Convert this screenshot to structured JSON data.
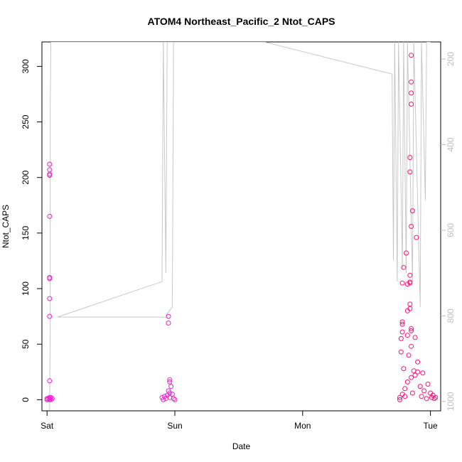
{
  "chart_data": {
    "type": "scatter",
    "title": "ATOM4 Northeast_Pacific_2 Ntot_CAPS",
    "xlabel": "Date",
    "ylabel": "Ntot_CAPS",
    "x_ticks": [
      "Sat",
      "Sun",
      "Mon",
      "Tue"
    ],
    "y_ticks": [
      0,
      50,
      100,
      150,
      200,
      250,
      300
    ],
    "y2_ticks": [
      200,
      400,
      600,
      800,
      1000
    ],
    "xlim_days": [
      -0.04,
      3.08
    ],
    "ylim": [
      -10,
      322
    ],
    "y2lim_reversed": [
      1022,
      160
    ],
    "grid": false,
    "legend": "none",
    "colors": {
      "points_early": "#ee22cc",
      "points_late": "#ff1177",
      "secondary_line": "#c8c8c8",
      "right_axis": "#bdbdbd"
    },
    "series": [
      {
        "role": "points",
        "points": [
          [
            0.02,
            0
          ],
          [
            0.02,
            1
          ],
          [
            0.02,
            2
          ],
          [
            0.02,
            17
          ],
          [
            0.02,
            75
          ],
          [
            0.02,
            91
          ],
          [
            0.02,
            109
          ],
          [
            0.02,
            110
          ],
          [
            0.02,
            165
          ],
          [
            0.02,
            202
          ],
          [
            0.02,
            203
          ],
          [
            0.02,
            207
          ],
          [
            0.02,
            212
          ],
          [
            0.0,
            0
          ],
          [
            0.01,
            1
          ],
          [
            0.03,
            0
          ],
          [
            0.04,
            1
          ],
          [
            0.03,
            2
          ],
          [
            0.0,
            1
          ],
          [
            0.9,
            2
          ],
          [
            0.92,
            3
          ],
          [
            0.94,
            4
          ],
          [
            0.96,
            2
          ],
          [
            0.98,
            5
          ],
          [
            0.96,
            6
          ],
          [
            0.95,
            8
          ],
          [
            0.97,
            12
          ],
          [
            0.96,
            16
          ],
          [
            0.96,
            18
          ],
          [
            0.95,
            69
          ],
          [
            0.95,
            75
          ],
          [
            1.0,
            0
          ],
          [
            0.99,
            1
          ],
          [
            0.93,
            1
          ],
          [
            0.91,
            0
          ],
          [
            2.76,
            0
          ],
          [
            2.78,
            5
          ],
          [
            2.8,
            10
          ],
          [
            2.82,
            16
          ],
          [
            2.85,
            20
          ],
          [
            2.88,
            22
          ],
          [
            2.9,
            25
          ],
          [
            2.92,
            12
          ],
          [
            2.95,
            8
          ],
          [
            2.98,
            14
          ],
          [
            3.0,
            6
          ],
          [
            3.02,
            4
          ],
          [
            3.04,
            2
          ],
          [
            2.77,
            43
          ],
          [
            2.77,
            55
          ],
          [
            2.78,
            61
          ],
          [
            2.78,
            68
          ],
          [
            2.78,
            70
          ],
          [
            2.78,
            105
          ],
          [
            2.79,
            119
          ],
          [
            2.82,
            104
          ],
          [
            2.81,
            132
          ],
          [
            2.84,
            105
          ],
          [
            2.84,
            106
          ],
          [
            2.84,
            112
          ],
          [
            2.84,
            205
          ],
          [
            2.84,
            218
          ],
          [
            2.85,
            266
          ],
          [
            2.85,
            276
          ],
          [
            2.85,
            286
          ],
          [
            2.85,
            310
          ],
          [
            2.84,
            86
          ],
          [
            2.84,
            82
          ],
          [
            2.85,
            64
          ],
          [
            2.85,
            62
          ],
          [
            2.85,
            48
          ],
          [
            2.86,
            170
          ],
          [
            2.85,
            156
          ],
          [
            2.89,
            146
          ],
          [
            2.82,
            80
          ],
          [
            2.82,
            58
          ],
          [
            2.83,
            40
          ],
          [
            2.88,
            56
          ],
          [
            2.9,
            34
          ],
          [
            2.94,
            24
          ],
          [
            2.76,
            2
          ],
          [
            2.8,
            3
          ],
          [
            2.86,
            6
          ],
          [
            2.93,
            3
          ],
          [
            2.97,
            1
          ],
          [
            3.01,
            2
          ],
          [
            3.03,
            1
          ],
          [
            2.79,
            28
          ],
          [
            2.87,
            26
          ]
        ]
      },
      {
        "role": "secondary",
        "axis": "right",
        "points": [
          [
            0.02,
            1022
          ],
          [
            0.025,
            820
          ],
          [
            0.025,
            310
          ],
          [
            0.03,
            160
          ],
          [
            0.98,
            160
          ],
          [
            0.99,
            160
          ],
          [
            0.98,
            780
          ],
          [
            0.94,
            795
          ],
          [
            0.94,
            800
          ],
          [
            0.93,
            803
          ],
          [
            0.08,
            803
          ],
          [
            0.9,
            720
          ],
          [
            0.91,
            160
          ],
          [
            0.93,
            700
          ],
          [
            0.94,
            160
          ],
          [
            0.96,
            160
          ],
          [
            1.7,
            160
          ],
          [
            2.7,
            235
          ],
          [
            2.71,
            670
          ],
          [
            2.72,
            160
          ],
          [
            2.74,
            720
          ],
          [
            2.75,
            160
          ],
          [
            2.78,
            690
          ],
          [
            2.79,
            160
          ],
          [
            2.81,
            700
          ],
          [
            2.82,
            160
          ],
          [
            2.86,
            720
          ],
          [
            2.87,
            160
          ],
          [
            2.92,
            780
          ],
          [
            2.93,
            160
          ],
          [
            2.96,
            530
          ],
          [
            2.97,
            160
          ],
          [
            3.0,
            160
          ]
        ]
      }
    ]
  }
}
